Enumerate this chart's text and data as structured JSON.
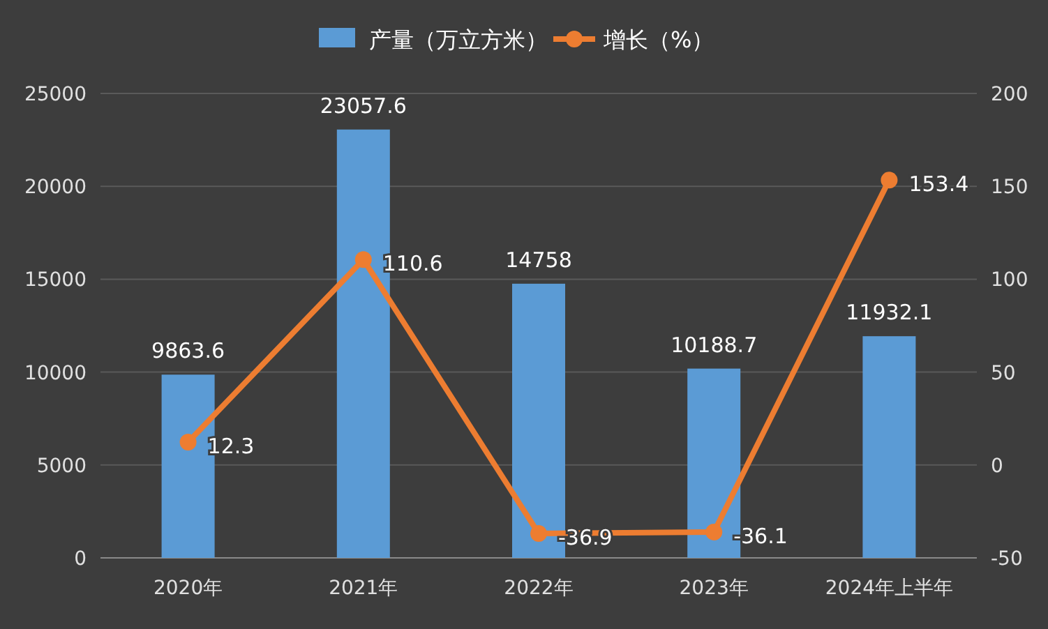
{
  "chart_data": {
    "type": "bar",
    "categories": [
      "2020年",
      "2021年",
      "2022年",
      "2023年",
      "2024年上半年"
    ],
    "series": [
      {
        "name": "产量（万立方米）",
        "color": "#5b9bd5",
        "values": [
          9863.6,
          23057.6,
          14758,
          10188.7,
          11932.1
        ]
      },
      {
        "name": "增长（%）",
        "type": "line",
        "axis": "y2",
        "color": "#ed7d31",
        "marker": "circle",
        "values": [
          12.3,
          110.6,
          -36.9,
          -36.1,
          153.4
        ]
      }
    ],
    "ylim": [
      0,
      25000
    ],
    "yticks": [
      0,
      5000,
      10000,
      15000,
      20000,
      25000
    ],
    "y2lim": [
      -50,
      200
    ],
    "y2ticks": [
      -50,
      0,
      50,
      100,
      150,
      200
    ],
    "grid": "y",
    "legend": "top",
    "data_labels": true
  }
}
